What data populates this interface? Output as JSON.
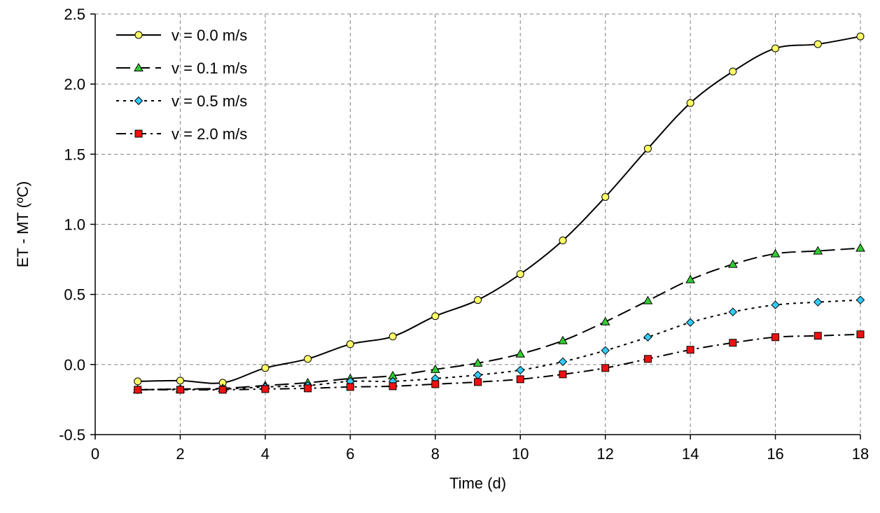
{
  "chart_data": {
    "type": "line",
    "title": "",
    "xlabel": "Time (d)",
    "ylabel": "ET - MT (ºC)",
    "xlim": [
      0,
      18
    ],
    "ylim": [
      -0.5,
      2.5
    ],
    "xticks": [
      0,
      2,
      4,
      6,
      8,
      10,
      12,
      14,
      16,
      18
    ],
    "yticks": [
      -0.5,
      0.0,
      0.5,
      1.0,
      1.5,
      2.0,
      2.5
    ],
    "xtick_labels": [
      "0",
      "2",
      "4",
      "6",
      "8",
      "10",
      "12",
      "14",
      "16",
      "18"
    ],
    "ytick_labels": [
      "-0.5",
      "0.0",
      "0.5",
      "1.0",
      "1.5",
      "2.0",
      "2.5"
    ],
    "grid": true,
    "legend_position": "top-left",
    "x": [
      1,
      2,
      3,
      4,
      5,
      6,
      7,
      8,
      9,
      10,
      11,
      12,
      13,
      14,
      15,
      16,
      17,
      18
    ],
    "series": [
      {
        "name": "v = 0.0 m/s",
        "marker": "circle",
        "line_style": "solid",
        "marker_color": "#ffff66",
        "values": [
          -0.12,
          -0.115,
          -0.13,
          -0.025,
          0.04,
          0.145,
          0.2,
          0.345,
          0.46,
          0.645,
          0.885,
          1.195,
          1.54,
          1.865,
          2.09,
          2.255,
          2.285,
          2.34
        ]
      },
      {
        "name": "v = 0.1 m/s",
        "marker": "triangle",
        "line_style": "long-dash",
        "marker_color": "#33cc33",
        "values": [
          -0.18,
          -0.175,
          -0.17,
          -0.15,
          -0.13,
          -0.1,
          -0.08,
          -0.035,
          0.01,
          0.075,
          0.17,
          0.305,
          0.455,
          0.605,
          0.715,
          0.79,
          0.81,
          0.83
        ]
      },
      {
        "name": "v = 0.5 m/s",
        "marker": "diamond",
        "line_style": "dotted",
        "marker_color": "#33ccff",
        "values": [
          -0.18,
          -0.175,
          -0.175,
          -0.16,
          -0.15,
          -0.12,
          -0.12,
          -0.1,
          -0.075,
          -0.04,
          0.02,
          0.1,
          0.195,
          0.3,
          0.375,
          0.425,
          0.445,
          0.46
        ]
      },
      {
        "name": "v = 2.0 m/s",
        "marker": "square",
        "line_style": "dash-dot",
        "marker_color": "#ee1111",
        "values": [
          -0.18,
          -0.18,
          -0.18,
          -0.175,
          -0.17,
          -0.16,
          -0.155,
          -0.14,
          -0.125,
          -0.105,
          -0.07,
          -0.025,
          0.04,
          0.105,
          0.155,
          0.195,
          0.205,
          0.215
        ]
      }
    ]
  }
}
